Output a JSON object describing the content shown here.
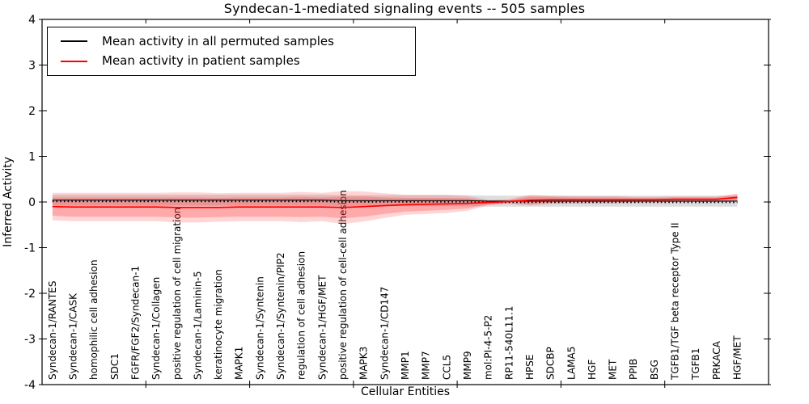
{
  "figure": {
    "title": "Syndecan-1-mediated signaling events -- 505 samples",
    "xlabel": "Cellular Entities",
    "ylabel": "Inferred Activity"
  },
  "legend": {
    "position": "upper left",
    "entries": [
      {
        "label": "Mean activity in all permuted samples",
        "color": "#000000"
      },
      {
        "label": "Mean activity in patient samples",
        "color": "#ff0000"
      }
    ]
  },
  "chart_data": {
    "type": "line",
    "title": "Syndecan-1-mediated signaling events -- 505 samples",
    "xlabel": "Cellular Entities",
    "ylabel": "Inferred Activity",
    "ylim": [
      -4,
      4
    ],
    "xlim": [
      0,
      35
    ],
    "yticks": [
      -4,
      -3,
      -2,
      -1,
      0,
      1,
      2,
      3,
      4
    ],
    "ytick_labels": [
      "-4",
      "-3",
      "-2",
      "-1",
      "0",
      "1",
      "2",
      "3",
      "4"
    ],
    "xticks_major": [
      5,
      10,
      15,
      20,
      25,
      30
    ],
    "grid": false,
    "legend_position": "upper left",
    "categories": [
      "Syndecan-1/RANTES",
      "Syndecan-1/CASK",
      "homophilic cell adhesion",
      "SDC1",
      "FGFR/FGF2/Syndecan-1",
      "Syndecan-1/Collagen",
      "positive regulation of cell migration",
      "Syndecan-1/Laminin-5",
      "keratinocyte migration",
      "MAPK1",
      "Syndecan-1/Syntenin",
      "Syndecan-1/Syntenin/PIP2",
      "regulation of cell adhesion",
      "Syndecan-1/HGF/MET",
      "positive regulation of cell-cell adhesion",
      "MAPK3",
      "Syndecan-1/CD147",
      "MMP1",
      "MMP7",
      "CCL5",
      "MMP9",
      "mol:PI-4-5-P2",
      "RP11-540L11.1",
      "HPSE",
      "SDCBP",
      "LAMA5",
      "HGF",
      "MET",
      "PPIB",
      "BSG",
      "TGFB1/TGF beta receptor Type II",
      "TGFB1",
      "PRKACA",
      "HGF/MET"
    ],
    "series": [
      {
        "name": "Mean activity in all permuted samples",
        "color": "#000000",
        "style": "solid-with-tick-markers",
        "values": [
          0.04,
          0.04,
          0.04,
          0.04,
          0.04,
          0.04,
          0.04,
          0.04,
          0.04,
          0.04,
          0.04,
          0.04,
          0.04,
          0.04,
          0.03,
          0.03,
          0.03,
          0.03,
          0.03,
          0.03,
          0.03,
          0.02,
          0.02,
          0.02,
          0.02,
          0.02,
          0.02,
          0.02,
          0.02,
          0.02,
          0.02,
          0.02,
          0.02,
          0.02
        ]
      },
      {
        "name": "Mean activity in patient samples",
        "color": "#ff0000",
        "style": "solid",
        "values": [
          -0.1,
          -0.11,
          -0.11,
          -0.11,
          -0.11,
          -0.11,
          -0.12,
          -0.12,
          -0.12,
          -0.11,
          -0.11,
          -0.11,
          -0.11,
          -0.11,
          -0.12,
          -0.1,
          -0.08,
          -0.06,
          -0.05,
          -0.04,
          -0.03,
          -0.01,
          0.01,
          0.04,
          0.05,
          0.05,
          0.05,
          0.05,
          0.05,
          0.05,
          0.06,
          0.06,
          0.06,
          0.1
        ]
      }
    ],
    "bands": [
      {
        "name": "permuted-mean-std-band",
        "center_series": 0,
        "color": "rgba(125,125,125,0.25)",
        "half_width": [
          0.12,
          0.12,
          0.12,
          0.12,
          0.12,
          0.12,
          0.12,
          0.12,
          0.12,
          0.12,
          0.12,
          0.12,
          0.12,
          0.12,
          0.12,
          0.12,
          0.12,
          0.12,
          0.12,
          0.12,
          0.12,
          0.12,
          0.12,
          0.12,
          0.12,
          0.12,
          0.12,
          0.12,
          0.12,
          0.12,
          0.12,
          0.12,
          0.12,
          0.12
        ]
      },
      {
        "name": "patient-mean-std-outer-band",
        "center_series": 1,
        "color": "rgba(255,45,45,0.20)",
        "half_width": [
          0.3,
          0.31,
          0.31,
          0.31,
          0.31,
          0.31,
          0.33,
          0.33,
          0.31,
          0.31,
          0.31,
          0.31,
          0.33,
          0.31,
          0.36,
          0.33,
          0.27,
          0.22,
          0.21,
          0.2,
          0.16,
          0.06,
          0.05,
          0.12,
          0.09,
          0.08,
          0.08,
          0.08,
          0.06,
          0.06,
          0.06,
          0.06,
          0.06,
          0.09
        ]
      },
      {
        "name": "patient-mean-std-inner-band",
        "center_series": 1,
        "color": "rgba(255,45,45,0.26)",
        "half_width": [
          0.2,
          0.21,
          0.21,
          0.21,
          0.21,
          0.21,
          0.22,
          0.22,
          0.21,
          0.21,
          0.21,
          0.21,
          0.22,
          0.21,
          0.24,
          0.22,
          0.18,
          0.15,
          0.14,
          0.13,
          0.11,
          0.04,
          0.03,
          0.08,
          0.06,
          0.05,
          0.05,
          0.05,
          0.04,
          0.04,
          0.04,
          0.04,
          0.04,
          0.06
        ]
      }
    ]
  }
}
